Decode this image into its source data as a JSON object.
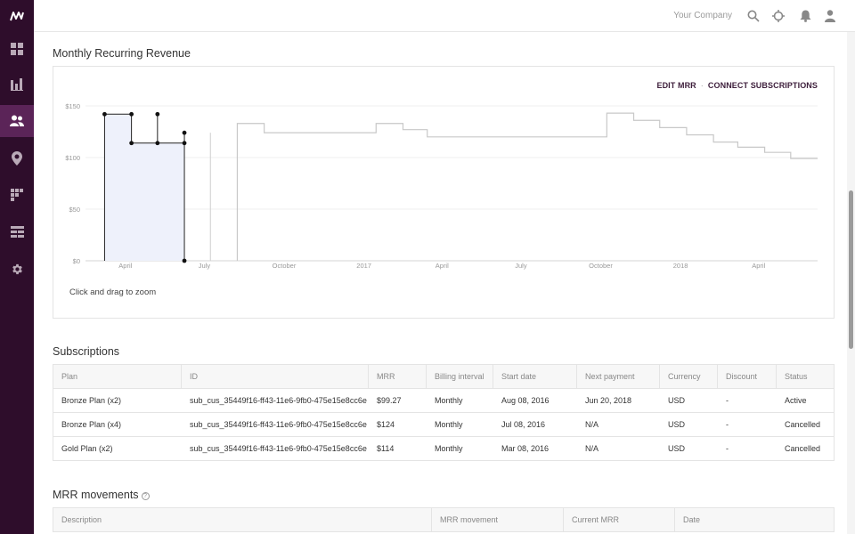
{
  "topbar": {
    "company": "Your Company"
  },
  "sidebar": {
    "items": [
      {
        "name": "dashboard-icon"
      },
      {
        "name": "reports-icon"
      },
      {
        "name": "customers-icon",
        "active": true
      },
      {
        "name": "map-icon"
      },
      {
        "name": "segments-icon"
      },
      {
        "name": "table-icon"
      },
      {
        "name": "settings-icon"
      }
    ]
  },
  "mrr_section": {
    "title": "Monthly Recurring Revenue",
    "edit_link": "EDIT MRR",
    "separator": "·",
    "connect_link": "CONNECT SUBSCRIPTIONS",
    "zoom_hint": "Click and drag to zoom"
  },
  "chart_data": {
    "type": "line",
    "ylabel": "",
    "xlabel": "",
    "y_ticks": [
      "$150",
      "$100",
      "$50",
      "$0"
    ],
    "y_tick_values": [
      150,
      100,
      50,
      0
    ],
    "x_ticks": [
      "April",
      "July",
      "October",
      "2017",
      "April",
      "July",
      "October",
      "2018",
      "April"
    ],
    "ylim": [
      0,
      150
    ],
    "grid": true,
    "highlighted_segment": {
      "range": [
        "2016-03-08",
        "2016-06-08"
      ],
      "points": [
        {
          "x": "2016-03-08",
          "y": 142
        },
        {
          "x": "2016-04-08",
          "y": 142
        },
        {
          "x": "2016-04-08",
          "y": 114
        },
        {
          "x": "2016-05-08",
          "y": 114
        },
        {
          "x": "2016-05-08",
          "y": 142
        },
        {
          "x": "2016-06-08",
          "y": 114
        },
        {
          "x": "2016-06-08",
          "y": 124
        }
      ]
    },
    "series": [
      {
        "points": [
          {
            "x": "2016-08-08",
            "y": 133
          },
          {
            "x": "2016-09-08",
            "y": 124
          },
          {
            "x": "2017-01-15",
            "y": 133
          },
          {
            "x": "2017-02-15",
            "y": 127
          },
          {
            "x": "2017-03-15",
            "y": 120
          },
          {
            "x": "2017-10-08",
            "y": 143
          },
          {
            "x": "2017-11-08",
            "y": 136
          },
          {
            "x": "2017-12-08",
            "y": 129
          },
          {
            "x": "2018-01-08",
            "y": 122
          },
          {
            "x": "2018-02-08",
            "y": 115
          },
          {
            "x": "2018-03-08",
            "y": 110
          },
          {
            "x": "2018-04-08",
            "y": 105
          },
          {
            "x": "2018-05-08",
            "y": 99
          }
        ]
      }
    ]
  },
  "subscriptions": {
    "title": "Subscriptions",
    "columns": [
      "Plan",
      "ID",
      "MRR",
      "Billing interval",
      "Start date",
      "Next payment",
      "Currency",
      "Discount",
      "Status"
    ],
    "rows": [
      [
        "Bronze Plan (x2)",
        "sub_cus_35449f16-ff43-11e6-9fb0-475e15e8cc6e",
        "$99.27",
        "Monthly",
        "Aug 08, 2016",
        "Jun 20, 2018",
        "USD",
        "-",
        "Active"
      ],
      [
        "Bronze Plan (x4)",
        "sub_cus_35449f16-ff43-11e6-9fb0-475e15e8cc6e",
        "$124",
        "Monthly",
        "Jul 08, 2016",
        "N/A",
        "USD",
        "-",
        "Cancelled"
      ],
      [
        "Gold Plan (x2)",
        "sub_cus_35449f16-ff43-11e6-9fb0-475e15e8cc6e",
        "$114",
        "Monthly",
        "Mar 08, 2016",
        "N/A",
        "USD",
        "-",
        "Cancelled"
      ]
    ]
  },
  "movements": {
    "title": "MRR movements",
    "help": "?",
    "columns": [
      "Description",
      "MRR movement",
      "Current MRR",
      "Date"
    ]
  },
  "colors": {
    "sidebar": "#2e0d2b",
    "sidebar_active": "#5b2458",
    "link": "#3d1e3b",
    "highlight_fill": "#eef1fb"
  }
}
